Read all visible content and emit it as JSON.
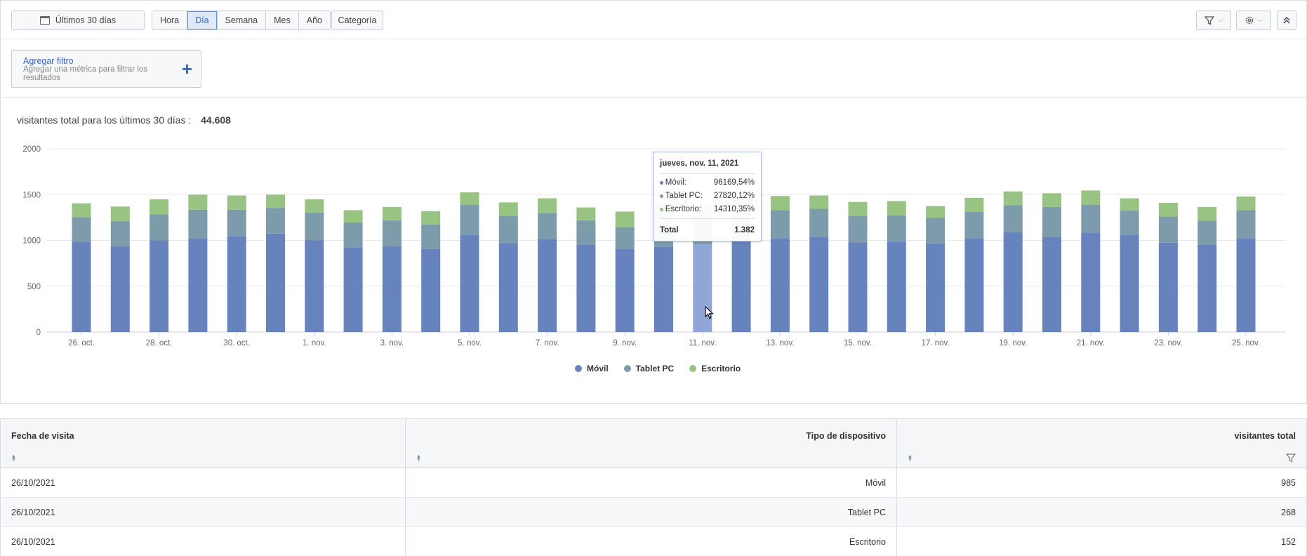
{
  "toolbar": {
    "date_range": "Últimos 30 días",
    "granularity": [
      {
        "label": "Hora",
        "active": false
      },
      {
        "label": "Día",
        "active": true
      },
      {
        "label": "Semana",
        "active": false
      },
      {
        "label": "Mes",
        "active": false
      },
      {
        "label": "Año",
        "active": false
      }
    ],
    "category_label": "Categoría"
  },
  "filter": {
    "title": "Agregar filtro",
    "description": "Agregar una métrica para filtrar los resultados"
  },
  "summary": {
    "label": "visitantes total para los últimos 30 días :",
    "value": "44.608"
  },
  "colors": {
    "movil": "#6783be",
    "tablet": "#7d9bab",
    "escritorio": "#98c382",
    "highlight": "#8fa6d6"
  },
  "tooltip": {
    "header": "jueves, nov. 11, 2021",
    "rows": [
      {
        "name": "Móvil:",
        "value": "961",
        "pct": "69,54%"
      },
      {
        "name": "Tablet PC:",
        "value": "278",
        "pct": "20,12%"
      },
      {
        "name": "Escritorio:",
        "value": "143",
        "pct": "10,35%"
      }
    ],
    "total_label": "Total",
    "total_value": "1.382"
  },
  "chart_data": {
    "type": "bar",
    "stacked": true,
    "ylim": [
      0,
      2000
    ],
    "yticks": [
      0,
      500,
      1000,
      1500,
      2000
    ],
    "grid": true,
    "legend_position": "bottom-center",
    "categories": [
      "26. oct.",
      "27. oct.",
      "28. oct.",
      "29. oct.",
      "30. oct.",
      "31. oct.",
      "1. nov.",
      "2. nov.",
      "3. nov.",
      "4. nov.",
      "5. nov.",
      "6. nov.",
      "7. nov.",
      "8. nov.",
      "9. nov.",
      "10. nov.",
      "11. nov.",
      "12. nov.",
      "13. nov.",
      "14. nov.",
      "15. nov.",
      "16. nov.",
      "17. nov.",
      "18. nov.",
      "19. nov.",
      "20. nov.",
      "21. nov.",
      "22. nov.",
      "23. nov.",
      "24. nov.",
      "25. nov."
    ],
    "xtick_labels": [
      "26. oct.",
      "28. oct.",
      "30. oct.",
      "1. nov.",
      "3. nov.",
      "5. nov.",
      "7. nov.",
      "9. nov.",
      "11. nov.",
      "13. nov.",
      "15. nov.",
      "17. nov.",
      "19. nov.",
      "21. nov.",
      "23. nov.",
      "25. nov."
    ],
    "highlight_index": 16,
    "series": [
      {
        "name": "Móvil",
        "values": [
          985,
          940,
          1000,
          1025,
          1045,
          1075,
          1000,
          925,
          940,
          905,
          1060,
          970,
          1015,
          955,
          910,
          930,
          961,
          1000,
          1025,
          1040,
          980,
          990,
          965,
          1025,
          1090,
          1040,
          1085,
          1060,
          975,
          955,
          1025
        ]
      },
      {
        "name": "Tablet PC",
        "values": [
          268,
          270,
          285,
          310,
          290,
          280,
          305,
          270,
          280,
          270,
          330,
          300,
          285,
          265,
          235,
          285,
          278,
          300,
          305,
          305,
          285,
          285,
          280,
          285,
          295,
          325,
          305,
          265,
          285,
          260,
          305
        ]
      },
      {
        "name": "Escritorio",
        "values": [
          152,
          160,
          165,
          165,
          155,
          145,
          145,
          135,
          145,
          145,
          135,
          145,
          160,
          140,
          170,
          165,
          143,
          160,
          155,
          145,
          155,
          155,
          130,
          155,
          150,
          150,
          155,
          135,
          150,
          150,
          150
        ]
      }
    ]
  },
  "table": {
    "headers": [
      "Fecha de visita",
      "Tipo de dispositivo",
      "visitantes total"
    ],
    "rows": [
      [
        "26/10/2021",
        "Móvil",
        "985"
      ],
      [
        "26/10/2021",
        "Tablet PC",
        "268"
      ],
      [
        "26/10/2021",
        "Escritorio",
        "152"
      ]
    ]
  }
}
